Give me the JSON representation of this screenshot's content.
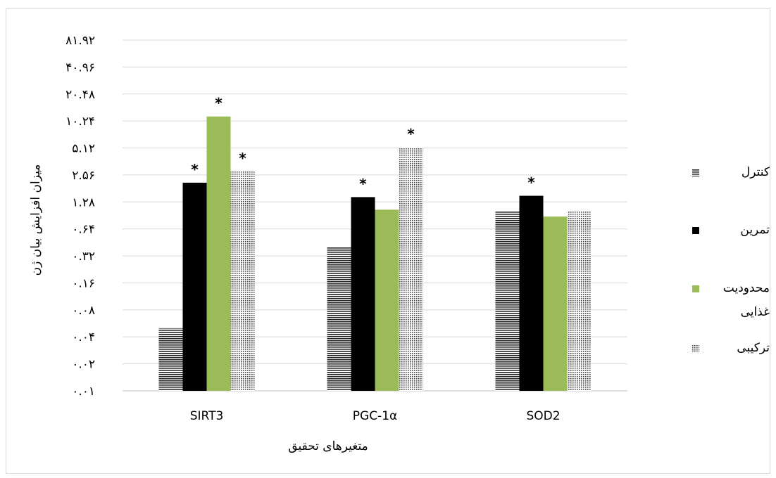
{
  "chart_data": {
    "type": "bar",
    "scale": "log2",
    "xlabel": "متغیرهای تحقیق",
    "ylabel": "میزان افزایش بیان ژن",
    "categories": [
      "SIRT3",
      "PGC-1α",
      "SOD2"
    ],
    "ylim": [
      0.01,
      81.92
    ],
    "yticks": [
      "۰.۰۱",
      "۰.۰۲",
      "۰.۰۴",
      "۰.۰۸",
      "۰.۱۶",
      "۰.۳۲",
      "۰.۶۴",
      "۱.۲۸",
      "۲.۵۶",
      "۵.۱۲",
      "۱۰.۲۴",
      "۲۰.۴۸",
      "۴۰.۹۶",
      "۸۱.۹۲"
    ],
    "ytick_values": [
      0.01,
      0.02,
      0.04,
      0.08,
      0.16,
      0.32,
      0.64,
      1.28,
      2.56,
      5.12,
      10.24,
      20.48,
      40.96,
      81.92
    ],
    "grid": "horizontal",
    "legend_position": "right",
    "series": [
      {
        "name": "کنترل",
        "values": [
          0.05,
          0.4,
          1.0
        ],
        "color": "#000000",
        "pattern": "horizontal-lines",
        "significant": [
          false,
          false,
          false
        ]
      },
      {
        "name": "تمرین",
        "values": [
          2.1,
          1.45,
          1.5
        ],
        "color": "#000000",
        "pattern": "solid",
        "significant": [
          true,
          true,
          true
        ]
      },
      {
        "name": "محدودیت غذایی",
        "values": [
          11.5,
          1.05,
          0.88
        ],
        "color": "#9bbb59",
        "pattern": "solid",
        "significant": [
          true,
          false,
          false
        ]
      },
      {
        "name": "ترکیبی",
        "values": [
          2.8,
          5.2,
          1.0
        ],
        "color": "#000000",
        "pattern": "dots",
        "significant": [
          true,
          true,
          false
        ]
      }
    ],
    "annotation_mark": "*"
  }
}
